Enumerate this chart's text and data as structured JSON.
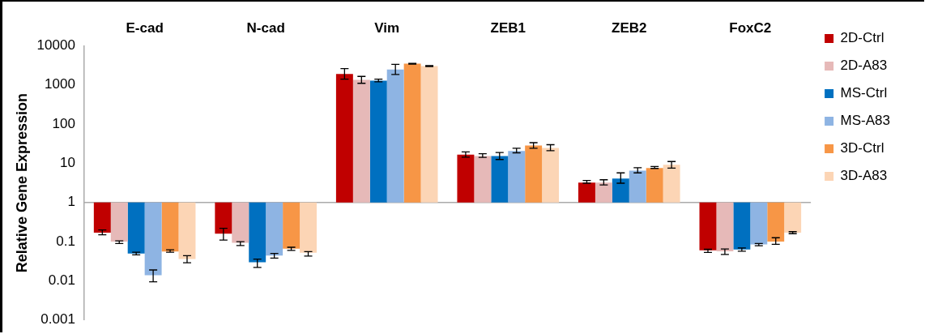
{
  "chart_data": {
    "type": "bar",
    "ylabel": "Relative Gene Expression",
    "categories": [
      "E-cad",
      "N-cad",
      "Vim",
      "ZEB1",
      "ZEB2",
      "FoxC2"
    ],
    "log": true,
    "ylim": [
      0.001,
      10000
    ],
    "yticks": [
      0.001,
      0.01,
      0.1,
      1,
      10,
      100,
      1000,
      10000
    ],
    "grid": false,
    "legend": "right",
    "ref_lines": [
      {
        "axis": "y",
        "value": 1,
        "color": "#aaaaaa"
      }
    ],
    "series": [
      {
        "name": "2D-Ctrl",
        "color": "#c00000",
        "base": [
          1,
          1,
          1,
          1,
          1,
          1
        ],
        "values": [
          -0.83,
          -0.84,
          1899,
          15.7,
          2.2,
          -0.94
        ],
        "errors": [
          [
            0.15,
            0.2
          ],
          [
            0.11,
            0.22
          ],
          [
            1400,
            2600
          ],
          [
            14.3,
            19.5
          ],
          [
            3.1,
            3.65
          ],
          [
            0.053,
            0.064
          ]
        ]
      },
      {
        "name": "2D-A83",
        "color": "#e6b9b8",
        "base": [
          1,
          1,
          1,
          1,
          1,
          1
        ],
        "values": [
          -0.9,
          -0.906,
          1349,
          14.3,
          2.2,
          -0.943
        ],
        "errors": [
          [
            0.09,
            0.105
          ],
          [
            0.08,
            0.1
          ],
          [
            1100,
            1650
          ],
          [
            14.1,
            17.5
          ],
          [
            2.8,
            3.8
          ],
          [
            0.047,
            0.065
          ]
        ]
      },
      {
        "name": "MS-Ctrl",
        "color": "#0070c0",
        "base": [
          1,
          1,
          1,
          1,
          1,
          1
        ],
        "values": [
          -0.95,
          -0.97,
          1289,
          14.3,
          3.1,
          -0.937
        ],
        "errors": [
          [
            0.046,
            0.054
          ],
          [
            0.022,
            0.036
          ],
          [
            1200,
            1400
          ],
          [
            12.5,
            18.8
          ],
          [
            3.1,
            5.7
          ],
          [
            0.057,
            0.069
          ]
        ]
      },
      {
        "name": "MS-A83",
        "color": "#8eb4e3",
        "base": [
          1,
          1,
          1,
          1,
          1,
          1
        ],
        "values": [
          -0.986,
          -0.956,
          2469,
          19.5,
          5.5,
          -0.915
        ],
        "errors": [
          [
            0.0095,
            0.019
          ],
          [
            0.038,
            0.05
          ],
          [
            1850,
            3350
          ],
          [
            18.5,
            24.3
          ],
          [
            5.7,
            7.7
          ],
          [
            0.079,
            0.09
          ]
        ]
      },
      {
        "name": "3D-Ctrl",
        "color": "#f79646",
        "base": [
          1,
          1,
          1,
          1,
          1,
          1
        ],
        "values": [
          -0.944,
          -0.934,
          3469,
          27.3,
          6.6,
          -0.9
        ],
        "errors": [
          [
            0.054,
            0.062
          ],
          [
            0.06,
            0.072
          ],
          [
            3400,
            3550
          ],
          [
            24.3,
            33.6
          ],
          [
            7.4,
            8.3
          ],
          [
            0.086,
            0.126
          ]
        ]
      },
      {
        "name": "3D-A83",
        "color": "#fcd5b5",
        "base": [
          1,
          1,
          1,
          1,
          1,
          1
        ],
        "values": [
          -0.964,
          -0.948,
          3019,
          23.7,
          8.2,
          -0.83
        ],
        "errors": [
          [
            0.029,
            0.044
          ],
          [
            0.043,
            0.056
          ],
          [
            2950,
            3100
          ],
          [
            21,
            29.8
          ],
          [
            7.5,
            11.1
          ],
          [
            0.16,
            0.18
          ]
        ]
      }
    ]
  }
}
